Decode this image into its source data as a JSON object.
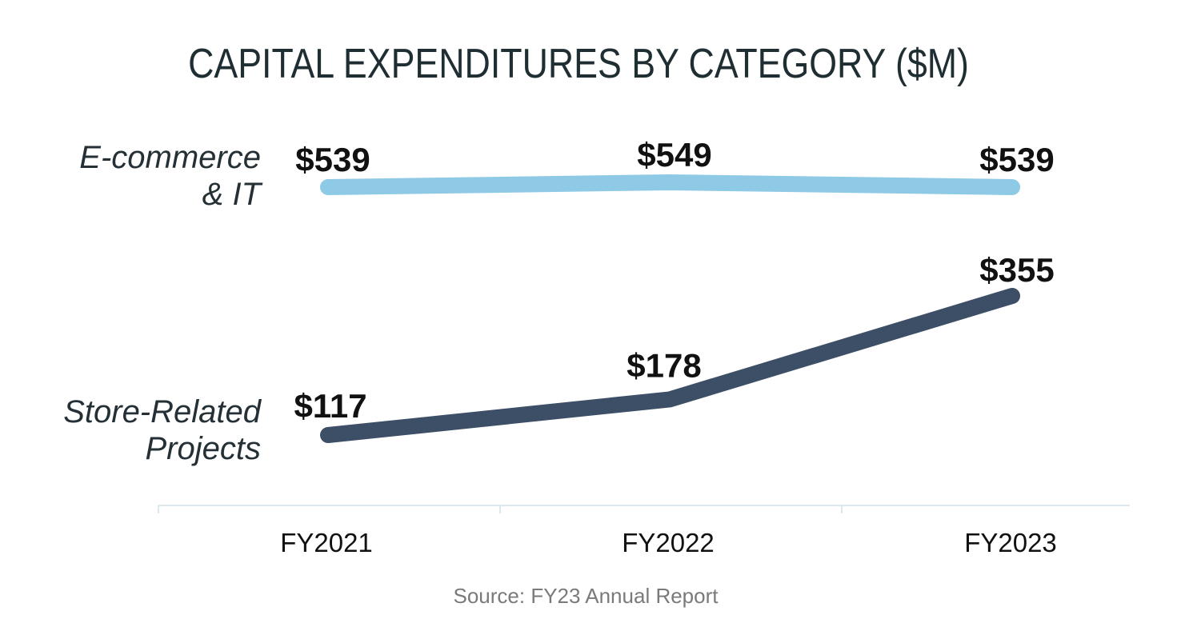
{
  "chart_data": {
    "type": "line",
    "title": "CAPITAL EXPENDITURES BY CATEGORY ($M)",
    "categories": [
      "FY2021",
      "FY2022",
      "FY2023"
    ],
    "series": [
      {
        "name_lines": [
          "E-commerce",
          "& IT"
        ],
        "values": [
          539,
          549,
          539
        ],
        "labels": [
          "$539",
          "$549",
          "$539"
        ],
        "color": "#8ecae6"
      },
      {
        "name_lines": [
          "Store-Related",
          "Projects"
        ],
        "values": [
          117,
          178,
          355
        ],
        "labels": [
          "$117",
          "$178",
          "$355"
        ],
        "color": "#3d4f66"
      }
    ],
    "grid": false,
    "axis_color": "#dde8ee"
  },
  "source": "Source: FY23 Annual Report"
}
